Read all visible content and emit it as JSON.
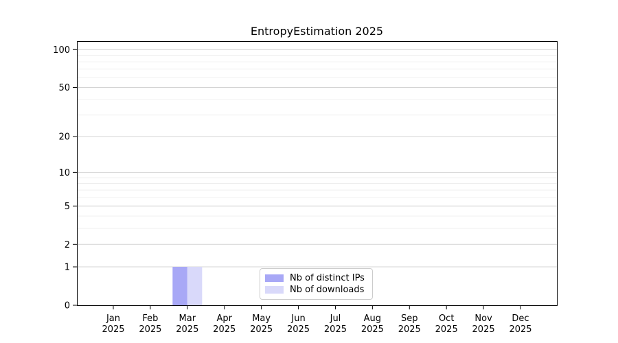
{
  "page": {
    "background": "#ffffff"
  },
  "chart_data": {
    "type": "bar",
    "title": "EntropyEstimation 2025",
    "categories": [
      "Jan",
      "Feb",
      "Mar",
      "Apr",
      "May",
      "Jun",
      "Jul",
      "Aug",
      "Sep",
      "Oct",
      "Nov",
      "Dec"
    ],
    "category_year": "2025",
    "series": [
      {
        "name": "Nb of distinct IPs",
        "color": "#a8a8f6",
        "values": [
          0,
          0,
          1,
          0,
          0,
          0,
          0,
          0,
          0,
          0,
          0,
          0
        ]
      },
      {
        "name": "Nb of downloads",
        "color": "#d9d9fa",
        "values": [
          0,
          0,
          1,
          0,
          0,
          0,
          0,
          0,
          0,
          0,
          0,
          0
        ]
      }
    ],
    "y_axis": {
      "scale": "log1p",
      "ticks": [
        0,
        1,
        2,
        5,
        10,
        20,
        50,
        100
      ],
      "minor_gridlines": [
        3,
        4,
        6,
        7,
        8,
        9,
        30,
        40,
        60,
        70,
        80,
        90
      ],
      "max": 116.6
    },
    "xlabel": "",
    "ylabel": "",
    "grid": {
      "on": true,
      "major_color": "#d4d4d4",
      "minor_color": "#ececec"
    },
    "legend": {
      "position": "lower-center"
    },
    "axis_color": "#000000",
    "text_color": "#000000"
  }
}
